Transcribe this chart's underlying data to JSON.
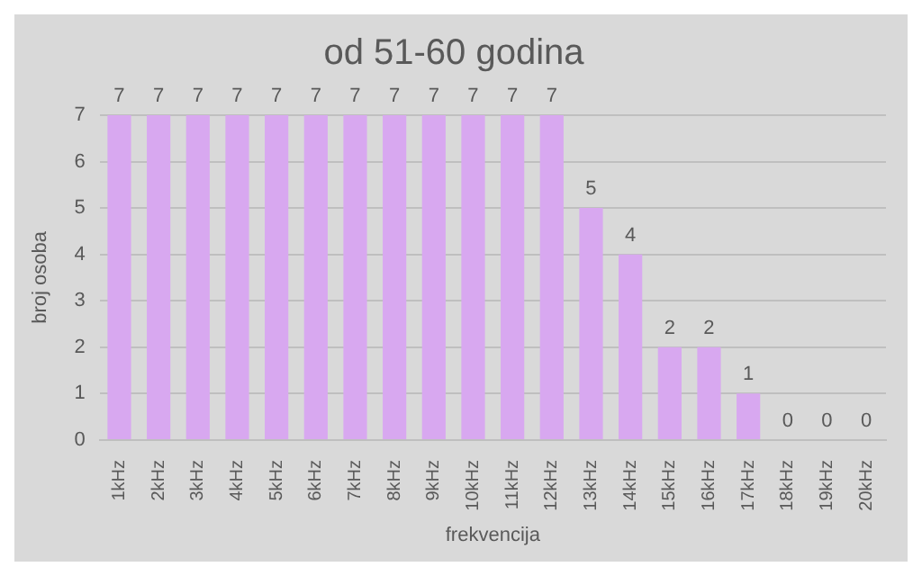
{
  "chart_data": {
    "type": "bar",
    "title": "od 51-60 godina",
    "xlabel": "frekvencija",
    "ylabel": "broj osoba",
    "categories": [
      "1kHz",
      "2kHz",
      "3kHz",
      "4kHz",
      "5kHz",
      "6kHz",
      "7kHz",
      "8kHz",
      "9kHz",
      "10kHz",
      "11kHz",
      "12kHz",
      "13kHz",
      "14kHz",
      "15kHz",
      "16kHz",
      "17kHz",
      "18kHz",
      "19kHz",
      "20kHz"
    ],
    "values": [
      7,
      7,
      7,
      7,
      7,
      7,
      7,
      7,
      7,
      7,
      7,
      7,
      5,
      4,
      2,
      2,
      1,
      0,
      0,
      0
    ],
    "color": "#d8a8f0",
    "ylim": [
      0,
      7
    ],
    "yticks": [
      0,
      1,
      2,
      3,
      4,
      5,
      6,
      7
    ],
    "grid": "y",
    "data_labels": true,
    "legend": false
  }
}
